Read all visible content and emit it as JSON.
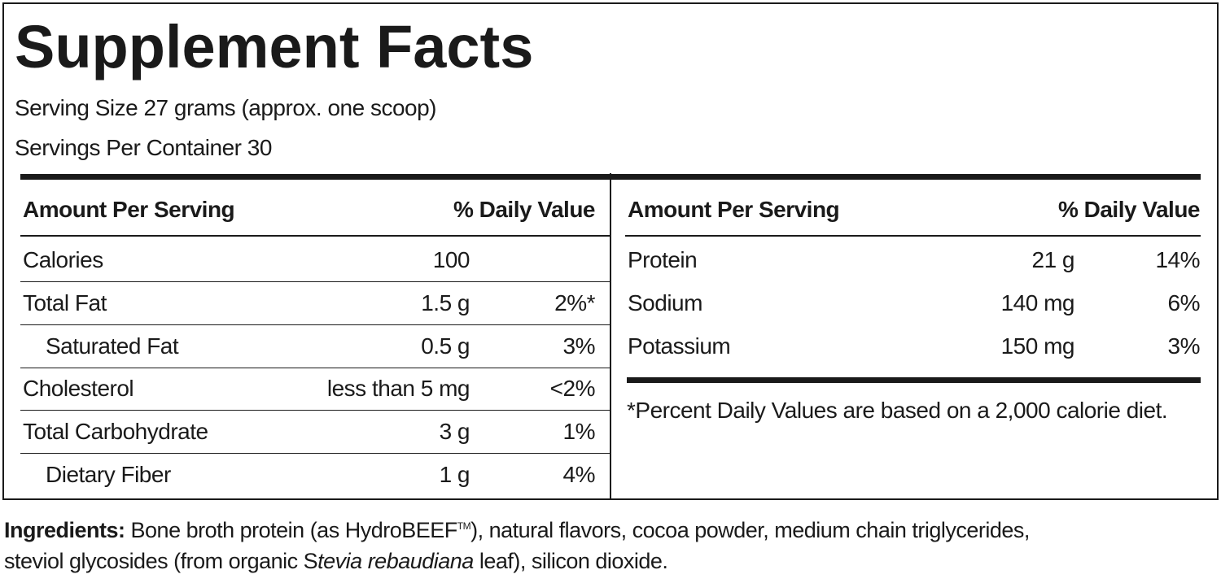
{
  "header": {
    "title": "Supplement Facts",
    "serving_size": "Serving Size 27 grams (approx. one scoop)",
    "servings_per_container": "Servings Per Container 30"
  },
  "left_table": {
    "header": [
      "Amount Per Serving",
      "% Daily Value"
    ],
    "rows": [
      [
        "Calories",
        "100",
        null
      ],
      [
        "Total Fat",
        "1.5 g",
        "2%*"
      ],
      [
        "Saturated Fat",
        "0.5 g",
        "3%"
      ],
      [
        "Cholesterol",
        "less than 5 mg",
        "<2%"
      ],
      [
        "Total Carbohydrate",
        "3 g",
        "1%"
      ],
      [
        "Dietary Fiber",
        "1 g",
        "4%"
      ]
    ]
  },
  "right_table": {
    "header": [
      "Amount Per Serving",
      "% Daily Value"
    ],
    "rows": [
      [
        "Protein",
        "21 g",
        "14%"
      ],
      [
        "Sodium",
        "140 mg",
        "6%"
      ],
      [
        "Potassium",
        "150 mg",
        "3%"
      ]
    ],
    "footnote": "*Percent Daily Values are based on a 2,000 calorie diet."
  },
  "ingredients": {
    "label": "Ingredients:",
    "text1": "Bone broth protein (as HydroBEEF",
    "tm": "TM",
    "text2": "), natural flavors, cocoa powder, medium chain triglycerides,",
    "text3": "steviol glycosides (from organic S",
    "italic": "tevia rebaudiana",
    "text4": " leaf), silicon dioxide."
  }
}
